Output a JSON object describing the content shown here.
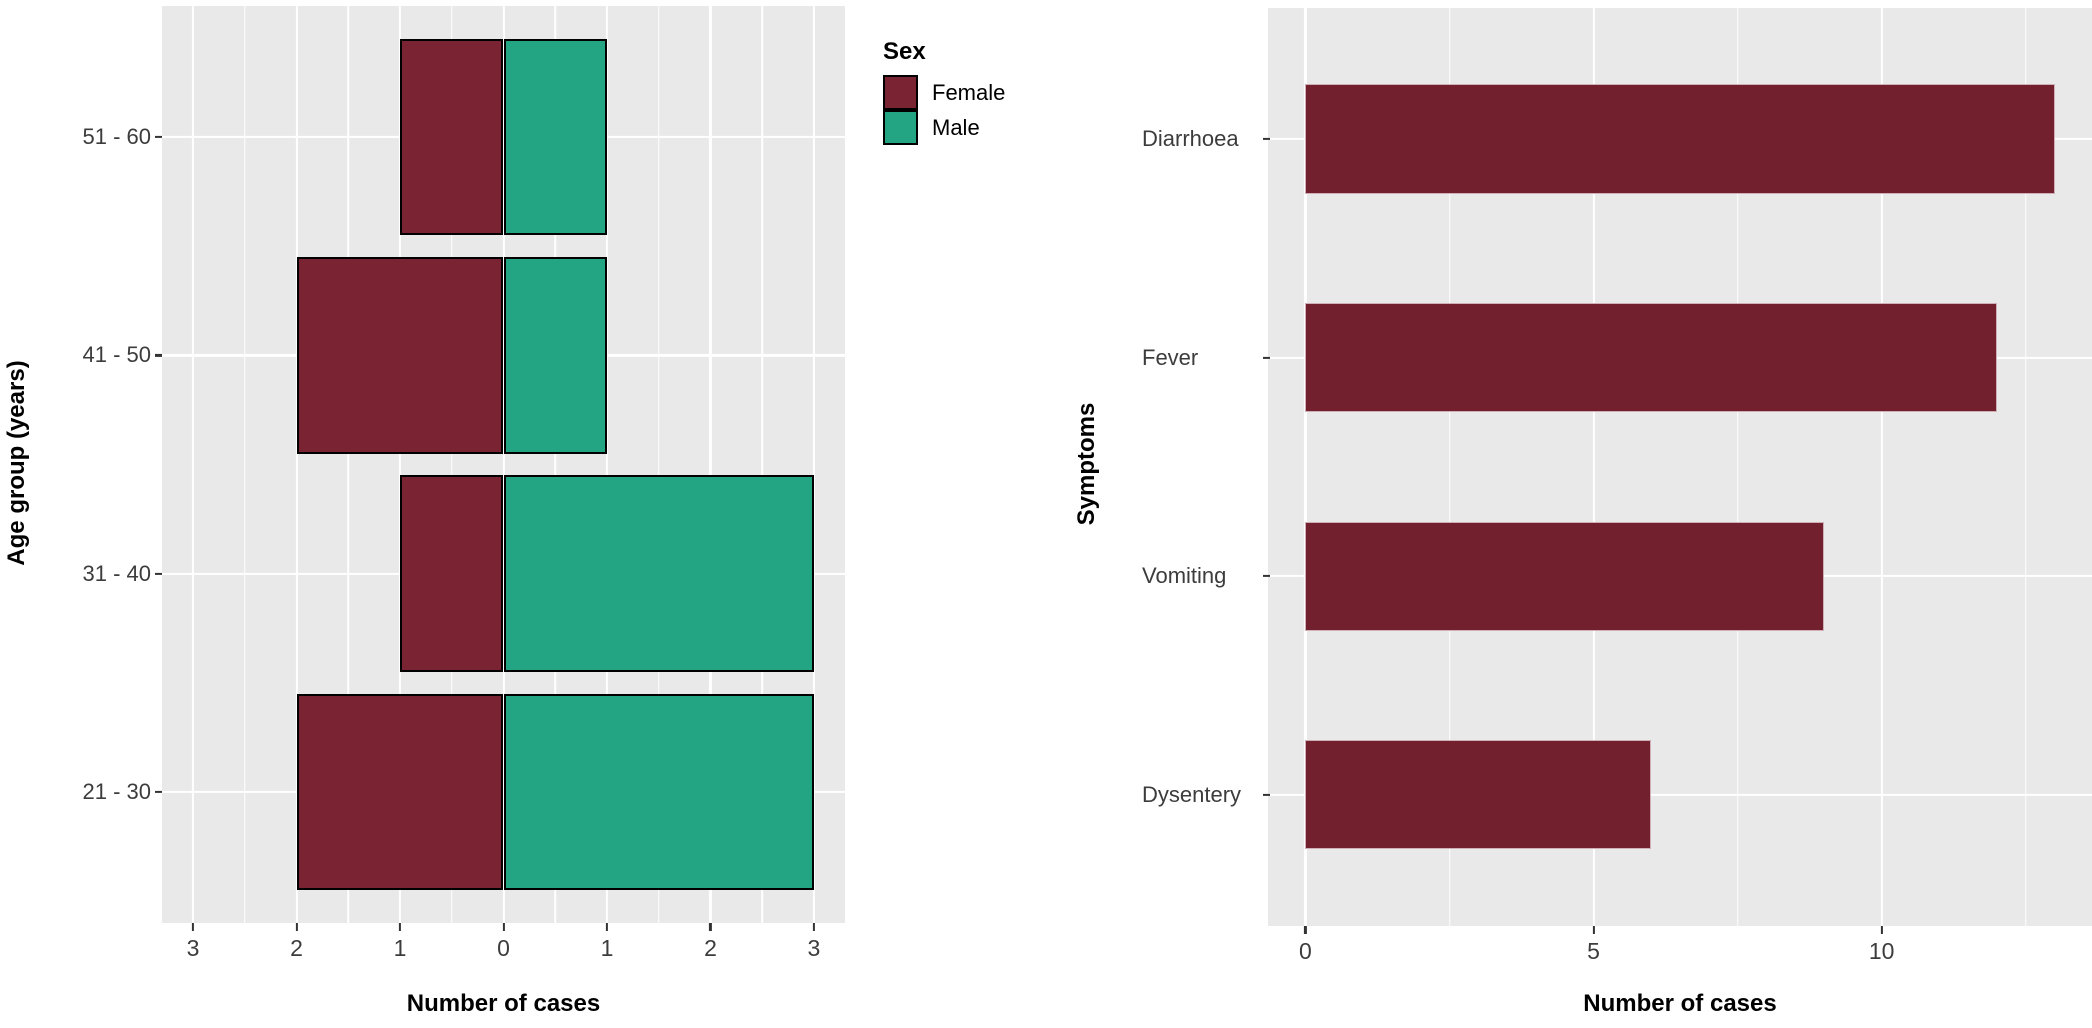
{
  "chart_data": [
    {
      "type": "bar",
      "subtype": "pyramid-horizontal",
      "title": "",
      "xlabel": "Number of cases",
      "ylabel": "Age group (years)",
      "categories": [
        "51 - 60",
        "41 - 50",
        "31 - 40",
        "21 - 30"
      ],
      "series": [
        {
          "name": "Female",
          "color": "#7A2332",
          "values": [
            1,
            2,
            1,
            2
          ]
        },
        {
          "name": "Male",
          "color": "#23A584",
          "values": [
            1,
            1,
            3,
            3
          ]
        }
      ],
      "xlim": [
        -3.3,
        3.3
      ],
      "x_ticks": [
        {
          "value": -3,
          "label": "3"
        },
        {
          "value": -2,
          "label": "2"
        },
        {
          "value": -1,
          "label": "1"
        },
        {
          "value": 0,
          "label": "0"
        },
        {
          "value": 1,
          "label": "1"
        },
        {
          "value": 2,
          "label": "2"
        },
        {
          "value": 3,
          "label": "3"
        }
      ],
      "x_minor": [
        -2.5,
        -1.5,
        -0.5,
        0.5,
        1.5,
        2.5
      ],
      "bar_width": 0.9,
      "bar_border_color": "#000000",
      "bar_border_px": 2,
      "grid_on": true,
      "panel_bg": "#E9E9E9",
      "grid_color": "#FFFFFF",
      "legend": {
        "position": "top-right-outside",
        "title": "Sex",
        "items": [
          {
            "label": "Female",
            "color": "#7A2332"
          },
          {
            "label": "Male",
            "color": "#23A584"
          }
        ]
      }
    },
    {
      "type": "bar",
      "subtype": "horizontal",
      "title": "",
      "xlabel": "Number of cases",
      "ylabel": "Symptoms",
      "categories": [
        "Diarrhoea",
        "Fever",
        "Vomiting",
        "Dysentery"
      ],
      "values": [
        13,
        12,
        9,
        6
      ],
      "bar_color": "#721F2E",
      "bar_border_color": "rgba(255,255,255,0.65)",
      "bar_border_px": 1.5,
      "xlim": [
        -0.65,
        13.65
      ],
      "x_ticks": [
        {
          "value": 0,
          "label": "0"
        },
        {
          "value": 5,
          "label": "5"
        },
        {
          "value": 10,
          "label": "10"
        }
      ],
      "x_minor": [
        2.5,
        7.5,
        12.5
      ],
      "bar_width": 0.5,
      "grid_on": true,
      "panel_bg": "#E9E9E9",
      "grid_color": "#FFFFFF",
      "legend": null
    }
  ]
}
